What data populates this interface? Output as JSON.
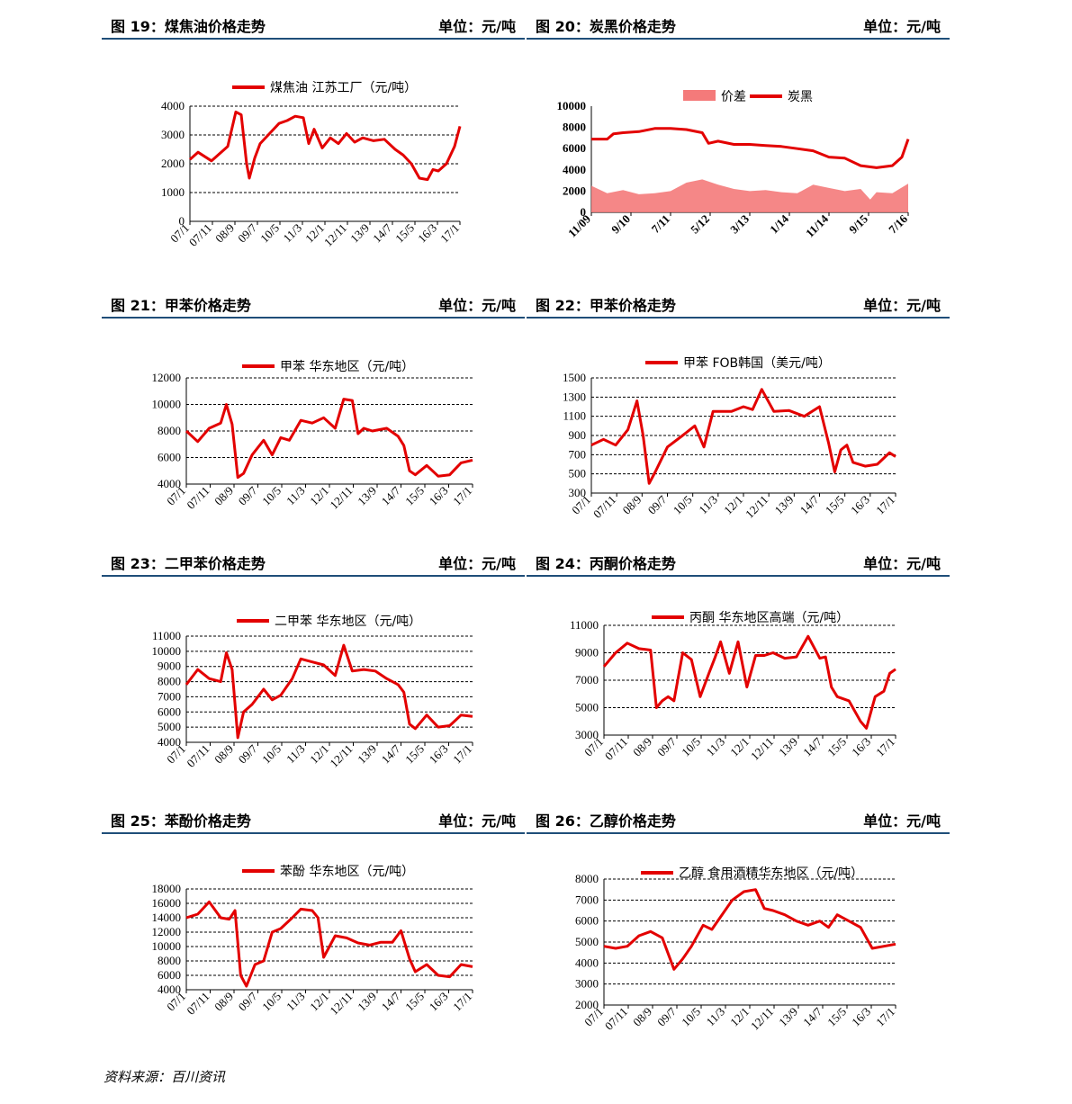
{
  "source": "资料来源：百川资讯",
  "charts": [
    {
      "id": "c19",
      "title": "图 19：煤焦油价格走势",
      "unit": "单位：元/吨",
      "chart_data": {
        "type": "line",
        "series": [
          {
            "name": "煤焦油 江苏工厂（元/吨）",
            "color": "#e30000",
            "x": [
              0,
              0.03,
              0.08,
              0.14,
              0.15,
              0.17,
              0.19,
              0.21,
              0.22,
              0.24,
              0.26,
              0.29,
              0.33,
              0.36,
              0.39,
              0.42,
              0.44,
              0.46,
              0.49,
              0.52,
              0.55,
              0.58,
              0.61,
              0.64,
              0.68,
              0.72,
              0.76,
              0.79,
              0.82,
              0.85,
              0.88,
              0.9,
              0.92,
              0.95,
              0.98,
              1.0
            ],
            "values": [
              2150,
              2400,
              2100,
              2600,
              3000,
              3800,
              3700,
              2000,
              1500,
              2200,
              2700,
              3000,
              3400,
              3500,
              3650,
              3600,
              2700,
              3200,
              2550,
              2900,
              2700,
              3050,
              2750,
              2900,
              2800,
              2850,
              2500,
              2300,
              2000,
              1500,
              1450,
              1800,
              1750,
              2000,
              2600,
              3300
            ]
          }
        ],
        "categories": [
          "07/1",
          "07/11",
          "08/9",
          "09/7",
          "10/5",
          "11/3",
          "12/1",
          "12/11",
          "13/9",
          "14/7",
          "15/5",
          "16/3",
          "17/1"
        ],
        "ylim": [
          0,
          4000
        ],
        "yticks": [
          0,
          1000,
          2000,
          3000,
          4000
        ],
        "grid": true,
        "legend": "top"
      }
    },
    {
      "id": "c20",
      "title": "图 20：炭黑价格走势",
      "unit": "单位：元/吨",
      "chart_data": {
        "type": "area+line",
        "series": [
          {
            "name": "价差",
            "type": "area",
            "color": "#f47a7a",
            "x": [
              0,
              0.05,
              0.1,
              0.15,
              0.2,
              0.25,
              0.3,
              0.35,
              0.4,
              0.45,
              0.5,
              0.55,
              0.6,
              0.65,
              0.7,
              0.75,
              0.8,
              0.85,
              0.88,
              0.9,
              0.95,
              1.0
            ],
            "values": [
              2500,
              1800,
              2100,
              1700,
              1800,
              2000,
              2800,
              3100,
              2600,
              2200,
              2000,
              2100,
              1900,
              1800,
              2600,
              2300,
              2000,
              2200,
              1200,
              1900,
              1800,
              2700
            ]
          },
          {
            "name": "炭黑",
            "type": "line",
            "color": "#e30000",
            "x": [
              0,
              0.05,
              0.07,
              0.1,
              0.15,
              0.2,
              0.25,
              0.3,
              0.35,
              0.37,
              0.4,
              0.45,
              0.5,
              0.55,
              0.6,
              0.65,
              0.7,
              0.75,
              0.8,
              0.85,
              0.9,
              0.95,
              0.98,
              1.0
            ],
            "values": [
              6900,
              6900,
              7400,
              7500,
              7600,
              7900,
              7900,
              7800,
              7500,
              6500,
              6700,
              6400,
              6400,
              6300,
              6200,
              6000,
              5800,
              5200,
              5100,
              4400,
              4200,
              4400,
              5200,
              6900
            ]
          }
        ],
        "categories": [
          "11/09",
          "9/10",
          "7/11",
          "5/12",
          "3/13",
          "1/14",
          "11/14",
          "9/15",
          "7/16"
        ],
        "ylim": [
          0,
          10000
        ],
        "yticks": [
          0,
          2000,
          4000,
          6000,
          8000,
          10000
        ],
        "grid": false,
        "legend": "top"
      }
    },
    {
      "id": "c21",
      "title": "图 21：甲苯价格走势",
      "unit": "单位：元/吨",
      "chart_data": {
        "type": "line",
        "series": [
          {
            "name": "甲苯 华东地区（元/吨）",
            "color": "#e30000",
            "x": [
              0,
              0.04,
              0.08,
              0.12,
              0.14,
              0.16,
              0.18,
              0.2,
              0.23,
              0.27,
              0.3,
              0.33,
              0.36,
              0.4,
              0.44,
              0.48,
              0.52,
              0.55,
              0.58,
              0.6,
              0.62,
              0.65,
              0.7,
              0.74,
              0.76,
              0.78,
              0.8,
              0.84,
              0.88,
              0.92,
              0.96,
              1.0
            ],
            "values": [
              8000,
              7200,
              8200,
              8600,
              10000,
              8500,
              4500,
              4800,
              6200,
              7300,
              6200,
              7500,
              7300,
              8800,
              8600,
              9000,
              8200,
              10400,
              10300,
              7800,
              8200,
              8000,
              8200,
              7600,
              6900,
              5000,
              4700,
              5400,
              4600,
              4700,
              5600,
              5800
            ]
          }
        ],
        "categories": [
          "07/1",
          "07/11",
          "08/9",
          "09/7",
          "10/5",
          "11/3",
          "12/1",
          "12/11",
          "13/9",
          "14/7",
          "15/5",
          "16/3",
          "17/1"
        ],
        "ylim": [
          4000,
          12000
        ],
        "yticks": [
          4000,
          6000,
          8000,
          10000,
          12000
        ],
        "grid": true,
        "legend": "top"
      }
    },
    {
      "id": "c22",
      "title": "图 22：甲苯价格走势",
      "unit": "单位：元/吨",
      "chart_data": {
        "type": "line",
        "series": [
          {
            "name": "甲苯 FOB韩国（美元/吨）",
            "color": "#e30000",
            "x": [
              0,
              0.04,
              0.08,
              0.12,
              0.15,
              0.17,
              0.19,
              0.21,
              0.25,
              0.3,
              0.34,
              0.37,
              0.4,
              0.43,
              0.46,
              0.5,
              0.53,
              0.56,
              0.6,
              0.65,
              0.7,
              0.75,
              0.78,
              0.8,
              0.82,
              0.84,
              0.86,
              0.9,
              0.94,
              0.98,
              1.0
            ],
            "values": [
              800,
              860,
              800,
              960,
              1260,
              900,
              400,
              520,
              780,
              900,
              1000,
              780,
              1150,
              1150,
              1150,
              1200,
              1170,
              1380,
              1150,
              1160,
              1100,
              1200,
              820,
              520,
              750,
              800,
              620,
              580,
              600,
              720,
              680
            ]
          }
        ],
        "categories": [
          "07/1",
          "07/11",
          "08/9",
          "09/7",
          "10/5",
          "11/3",
          "12/1",
          "12/11",
          "13/9",
          "14/7",
          "15/5",
          "16/3",
          "17/1"
        ],
        "ylim": [
          300,
          1500
        ],
        "yticks": [
          300,
          500,
          700,
          900,
          1100,
          1300,
          1500
        ],
        "grid": true,
        "legend": "top"
      }
    },
    {
      "id": "c23",
      "title": "图 23：二甲苯价格走势",
      "unit": "单位：元/吨",
      "chart_data": {
        "type": "line",
        "series": [
          {
            "name": "二甲苯 华东地区（元/吨）",
            "color": "#e30000",
            "x": [
              0,
              0.04,
              0.08,
              0.12,
              0.14,
              0.16,
              0.18,
              0.2,
              0.23,
              0.27,
              0.3,
              0.33,
              0.37,
              0.4,
              0.44,
              0.48,
              0.52,
              0.55,
              0.58,
              0.62,
              0.66,
              0.7,
              0.74,
              0.76,
              0.78,
              0.8,
              0.84,
              0.88,
              0.92,
              0.96,
              1.0
            ],
            "values": [
              7800,
              8800,
              8200,
              8000,
              9900,
              8800,
              4300,
              6000,
              6500,
              7500,
              6800,
              7100,
              8200,
              9500,
              9300,
              9100,
              8400,
              10400,
              8700,
              8800,
              8700,
              8200,
              7800,
              7300,
              5200,
              4900,
              5800,
              5000,
              5100,
              5800,
              5700
            ]
          }
        ],
        "categories": [
          "07/1",
          "07/11",
          "08/9",
          "09/7",
          "10/5",
          "11/3",
          "12/1",
          "12/11",
          "13/9",
          "14/7",
          "15/5",
          "16/3",
          "17/1"
        ],
        "ylim": [
          4000,
          11000
        ],
        "yticks": [
          4000,
          5000,
          6000,
          7000,
          8000,
          9000,
          10000,
          11000
        ],
        "grid": true,
        "legend": "top"
      }
    },
    {
      "id": "c24",
      "title": "图 24：丙酮价格走势",
      "unit": "单位：元/吨",
      "chart_data": {
        "type": "line",
        "series": [
          {
            "name": "丙酮 华东地区高端（元/吨）",
            "color": "#e30000",
            "x": [
              0,
              0.04,
              0.08,
              0.12,
              0.16,
              0.18,
              0.2,
              0.22,
              0.24,
              0.27,
              0.3,
              0.33,
              0.36,
              0.38,
              0.4,
              0.43,
              0.46,
              0.49,
              0.52,
              0.55,
              0.58,
              0.62,
              0.66,
              0.7,
              0.74,
              0.76,
              0.78,
              0.8,
              0.84,
              0.88,
              0.9,
              0.93,
              0.96,
              0.98,
              1.0
            ],
            "values": [
              8000,
              9000,
              9700,
              9300,
              9200,
              5000,
              5500,
              5800,
              5500,
              9000,
              8500,
              5800,
              7500,
              8600,
              9800,
              7500,
              9800,
              6500,
              8800,
              8800,
              9000,
              8600,
              8700,
              10200,
              8600,
              8700,
              6500,
              5800,
              5500,
              4000,
              3500,
              5800,
              6200,
              7500,
              7800
            ]
          }
        ],
        "categories": [
          "07/1",
          "07/11",
          "08/9",
          "09/7",
          "10/5",
          "11/3",
          "12/1",
          "12/11",
          "13/9",
          "14/7",
          "15/5",
          "16/3",
          "17/1"
        ],
        "ylim": [
          3000,
          11000
        ],
        "yticks": [
          3000,
          5000,
          7000,
          9000,
          11000
        ],
        "grid": true,
        "legend": "top"
      }
    },
    {
      "id": "c25",
      "title": "图 25：苯酚价格走势",
      "unit": "单位：元/吨",
      "chart_data": {
        "type": "line",
        "series": [
          {
            "name": "苯酚 华东地区（元/吨）",
            "color": "#e30000",
            "x": [
              0,
              0.04,
              0.08,
              0.12,
              0.15,
              0.17,
              0.19,
              0.21,
              0.24,
              0.27,
              0.3,
              0.33,
              0.37,
              0.4,
              0.44,
              0.46,
              0.48,
              0.52,
              0.56,
              0.6,
              0.64,
              0.68,
              0.72,
              0.75,
              0.78,
              0.8,
              0.84,
              0.88,
              0.92,
              0.96,
              1.0
            ],
            "values": [
              14000,
              14500,
              16200,
              14000,
              13800,
              15000,
              6000,
              4500,
              7500,
              8000,
              12000,
              12500,
              14000,
              15200,
              15000,
              14000,
              8500,
              11500,
              11200,
              10500,
              10200,
              10600,
              10600,
              12200,
              8300,
              6500,
              7500,
              6000,
              5800,
              7500,
              7200
            ]
          }
        ],
        "categories": [
          "07/1",
          "07/11",
          "08/9",
          "09/7",
          "10/5",
          "11/3",
          "12/1",
          "12/11",
          "13/9",
          "14/7",
          "15/5",
          "16/3",
          "17/1"
        ],
        "ylim": [
          4000,
          18000
        ],
        "yticks": [
          4000,
          6000,
          8000,
          10000,
          12000,
          14000,
          16000,
          18000
        ],
        "grid": true,
        "legend": "top"
      }
    },
    {
      "id": "c26",
      "title": "图 26：乙醇价格走势",
      "unit": "单位：元/吨",
      "chart_data": {
        "type": "line",
        "series": [
          {
            "name": "乙醇 食用酒精华东地区（元/吨）",
            "color": "#e30000",
            "x": [
              0,
              0.04,
              0.08,
              0.12,
              0.16,
              0.2,
              0.24,
              0.27,
              0.3,
              0.34,
              0.37,
              0.4,
              0.44,
              0.48,
              0.52,
              0.55,
              0.58,
              0.62,
              0.66,
              0.7,
              0.74,
              0.77,
              0.8,
              0.84,
              0.88,
              0.92,
              0.96,
              1.0
            ],
            "values": [
              4800,
              4700,
              4800,
              5300,
              5500,
              5200,
              3700,
              4200,
              4800,
              5800,
              5600,
              6200,
              7000,
              7400,
              7500,
              6600,
              6500,
              6300,
              6000,
              5800,
              6000,
              5700,
              6300,
              6000,
              5700,
              4700,
              4800,
              4900
            ]
          }
        ],
        "categories": [
          "07/1",
          "07/11",
          "08/9",
          "09/7",
          "10/5",
          "11/3",
          "12/1",
          "12/11",
          "13/9",
          "14/7",
          "15/5",
          "16/3",
          "17/1"
        ],
        "ylim": [
          2000,
          8000
        ],
        "yticks": [
          2000,
          3000,
          4000,
          5000,
          6000,
          7000,
          8000
        ],
        "grid": true,
        "legend": "top"
      }
    }
  ]
}
